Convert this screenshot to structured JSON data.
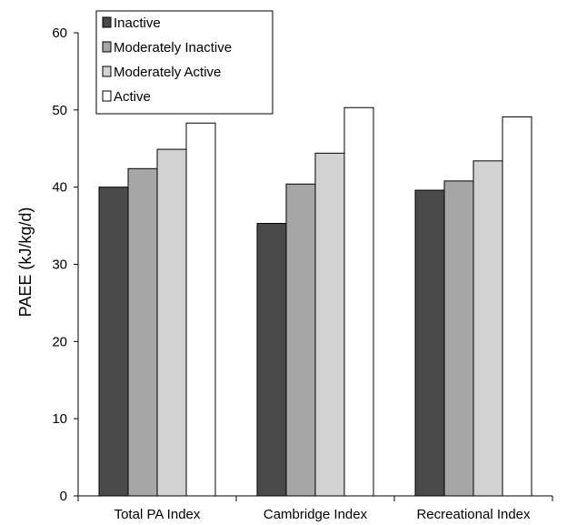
{
  "chart_data": {
    "type": "bar",
    "title": "",
    "xlabel": "",
    "ylabel": "PAEE (kJ/kg/d)",
    "ylim": [
      0,
      60
    ],
    "yticks": [
      "0",
      "10",
      "20",
      "30",
      "40",
      "50",
      "60"
    ],
    "grid": false,
    "legend_position": "top-left",
    "categories": [
      "Total PA Index",
      "Cambridge Index",
      "Recreational Index"
    ],
    "series": [
      {
        "name": "Inactive",
        "color": "#4a4a4a",
        "values": [
          40.0,
          35.3,
          39.6
        ]
      },
      {
        "name": "Moderately Inactive",
        "color": "#a6a6a6",
        "values": [
          42.4,
          40.4,
          40.8
        ]
      },
      {
        "name": "Moderately Active",
        "color": "#d2d2d2",
        "values": [
          44.9,
          44.4,
          43.4
        ]
      },
      {
        "name": "Active",
        "color": "#ffffff",
        "values": [
          48.3,
          50.3,
          49.1
        ]
      }
    ]
  }
}
